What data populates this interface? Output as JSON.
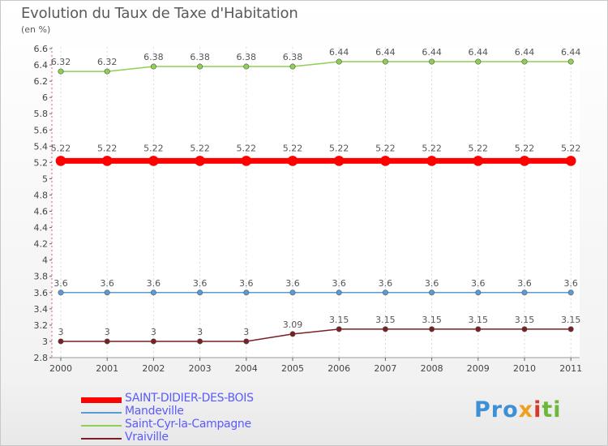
{
  "title": "Evolution du Taux de Taxe d'Habitation",
  "subtitle": "(en %)",
  "logo": {
    "part1": "Pro",
    "part2": "x",
    "part3": "i",
    "part4": "ti"
  },
  "chart_data": {
    "type": "line",
    "ylim": [
      2.8,
      6.6
    ],
    "y_ticks": [
      "2.8",
      "3",
      "3.2",
      "3.4",
      "3.6",
      "3.8",
      "4",
      "4.2",
      "4.4",
      "4.6",
      "4.8",
      "5",
      "5.2",
      "5.4",
      "5.6",
      "5.8",
      "6",
      "6.2",
      "6.4",
      "6.6"
    ],
    "x": [
      "2000",
      "2001",
      "2002",
      "2003",
      "2004",
      "2005",
      "2006",
      "2007",
      "2008",
      "2009",
      "2010",
      "2011"
    ],
    "grid": "vertical",
    "legend_placement": "bottom-left",
    "series": [
      {
        "name": "SAINT-DIDIER-DES-BOIS",
        "color": "#ff0000",
        "label_color": "#5a5aff",
        "width": 7,
        "values": [
          5.22,
          5.22,
          5.22,
          5.22,
          5.22,
          5.22,
          5.22,
          5.22,
          5.22,
          5.22,
          5.22,
          5.22
        ],
        "labels": [
          "5.22",
          "5.22",
          "5.22",
          "5.22",
          "5.22",
          "5.22",
          "5.22",
          "5.22",
          "5.22",
          "5.22",
          "5.22",
          "5.22"
        ]
      },
      {
        "name": "Mandeville",
        "color": "#5b9bd5",
        "label_color": "#5a5aff",
        "width": 1.5,
        "values": [
          3.6,
          3.6,
          3.6,
          3.6,
          3.6,
          3.6,
          3.6,
          3.6,
          3.6,
          3.6,
          3.6,
          3.6
        ],
        "labels": [
          "3.6",
          "3.6",
          "3.6",
          "3.6",
          "3.6",
          "3.6",
          "3.6",
          "3.6",
          "3.6",
          "3.6",
          "3.6",
          "3.6"
        ]
      },
      {
        "name": "Saint-Cyr-la-Campagne",
        "color": "#8ed050",
        "label_color": "#5a5aff",
        "width": 1.5,
        "values": [
          6.32,
          6.32,
          6.38,
          6.38,
          6.38,
          6.38,
          6.44,
          6.44,
          6.44,
          6.44,
          6.44,
          6.44
        ],
        "labels": [
          "6.32",
          "6.32",
          "6.38",
          "6.38",
          "6.38",
          "6.38",
          "6.44",
          "6.44",
          "6.44",
          "6.44",
          "6.44",
          "6.44"
        ]
      },
      {
        "name": "Vraiville",
        "color": "#7a1f24",
        "label_color": "#5a5aff",
        "width": 1.5,
        "values": [
          3,
          3,
          3,
          3,
          3,
          3.09,
          3.15,
          3.15,
          3.15,
          3.15,
          3.15,
          3.15
        ],
        "labels": [
          "3",
          "3",
          "3",
          "3",
          "3",
          "3.09",
          "3.15",
          "3.15",
          "3.15",
          "3.15",
          "3.15",
          "3.15"
        ]
      }
    ]
  }
}
